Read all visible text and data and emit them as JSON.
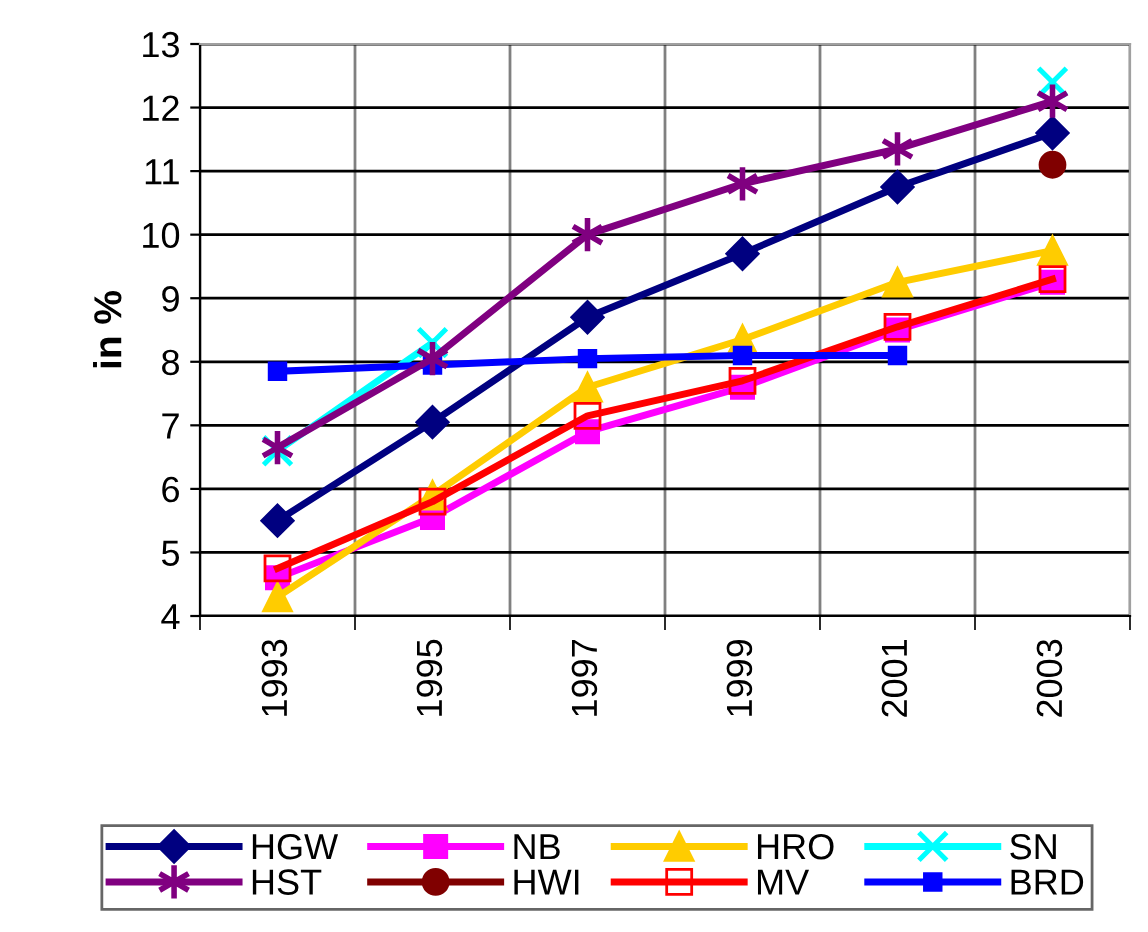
{
  "chart_data": {
    "type": "line",
    "ylabel": "in %",
    "categories": [
      "1993",
      "1995",
      "1997",
      "1999",
      "2001",
      "2003"
    ],
    "ylim": [
      4,
      13
    ],
    "yticks": [
      4,
      5,
      6,
      7,
      8,
      9,
      10,
      11,
      12,
      13
    ],
    "grid": true,
    "legend": "bottom",
    "line_style": "solid",
    "series": [
      {
        "name": "HGW",
        "color": "#000080",
        "marker": "diamond",
        "values": [
          5.5,
          7.05,
          8.7,
          9.7,
          10.75,
          11.6
        ]
      },
      {
        "name": "NB",
        "color": "#ff00ff",
        "marker": "square",
        "values": [
          4.6,
          5.55,
          6.9,
          7.6,
          8.5,
          9.25
        ]
      },
      {
        "name": "HRO",
        "color": "#ffcc00",
        "marker": "triangle",
        "values": [
          4.3,
          5.9,
          7.6,
          8.35,
          9.25,
          9.75
        ]
      },
      {
        "name": "SN",
        "color": "#00ffff",
        "marker": "cross",
        "values": [
          6.6,
          8.3,
          null,
          null,
          null,
          12.4
        ]
      },
      {
        "name": "HST",
        "color": "#800080",
        "marker": "cross",
        "values": [
          6.65,
          8.05,
          10.0,
          10.8,
          11.35,
          12.1
        ]
      },
      {
        "name": "HWI",
        "color": "#800000",
        "marker": "circle",
        "values": [
          null,
          null,
          null,
          null,
          null,
          11.1
        ]
      },
      {
        "name": "MV",
        "color": "#ff0000",
        "marker": "square",
        "values": [
          4.75,
          5.8,
          7.15,
          7.7,
          8.55,
          9.3
        ]
      },
      {
        "name": "BRD",
        "color": "#0000ff",
        "marker": "square",
        "values": [
          7.85,
          7.95,
          8.05,
          8.1,
          8.1,
          null
        ]
      }
    ]
  }
}
